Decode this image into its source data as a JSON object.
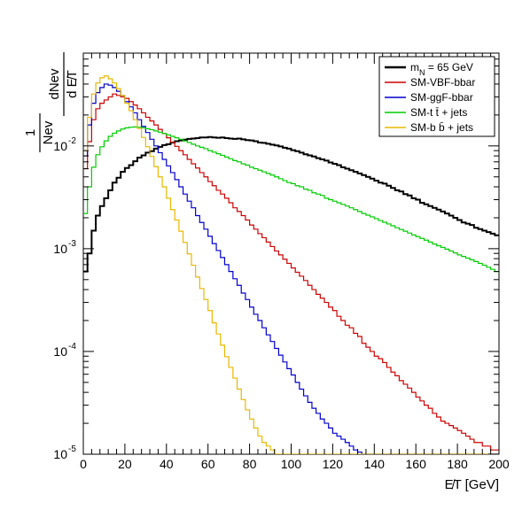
{
  "chart_data": {
    "type": "line",
    "title": "",
    "xlabel": "E̸T [GeV]",
    "ylabel_fraction_top": "1",
    "ylabel_fraction_bottom": "Nev",
    "ylabel_d": "dNev",
    "ylabel_d2": "d E̸T",
    "xlim": [
      0,
      200
    ],
    "ylim": [
      1e-05,
      0.08
    ],
    "y_scale": "log",
    "x_ticks": [
      "0",
      "20",
      "40",
      "60",
      "80",
      "100",
      "120",
      "140",
      "160",
      "180",
      "200"
    ],
    "y_ticks": [
      {
        "value": 0.01,
        "base": "10",
        "exp": "-2"
      },
      {
        "value": 0.001,
        "base": "10",
        "exp": "-3"
      },
      {
        "value": 0.0001,
        "base": "10",
        "exp": "-4"
      },
      {
        "value": 1e-05,
        "base": "10",
        "exp": "-5"
      }
    ],
    "grid": false,
    "legend_position": "top-right",
    "x_unit_step": 2,
    "series": [
      {
        "name": "mN = 65 GeV",
        "legend_main": "m",
        "legend_sub": "N",
        "legend_rest": " = 65 GeV",
        "color": "#000000",
        "values": [
          0.0006,
          0.0009,
          0.0015,
          0.0021,
          0.0026,
          0.0031,
          0.0037,
          0.0044,
          0.0049,
          0.0056,
          0.0061,
          0.0065,
          0.0071,
          0.0077,
          0.0081,
          0.0086,
          0.0089,
          0.0094,
          0.0098,
          0.0102,
          0.0104,
          0.0108,
          0.0111,
          0.0113,
          0.0115,
          0.0117,
          0.0118,
          0.0119,
          0.0121,
          0.0121,
          0.0122,
          0.0121,
          0.012,
          0.0121,
          0.0119,
          0.0118,
          0.0117,
          0.0118,
          0.0116,
          0.0114,
          0.0113,
          0.0111,
          0.0108,
          0.0107,
          0.0105,
          0.0103,
          0.0101,
          0.0099,
          0.0096,
          0.0094,
          0.0091,
          0.0089,
          0.0086,
          0.0083,
          0.0081,
          0.0079,
          0.0076,
          0.0074,
          0.0072,
          0.0069,
          0.0067,
          0.0065,
          0.0062,
          0.006,
          0.0058,
          0.0056,
          0.0054,
          0.0052,
          0.005,
          0.0048,
          0.0046,
          0.0044,
          0.0043,
          0.0041,
          0.0039,
          0.0037,
          0.0036,
          0.0034,
          0.0033,
          0.0031,
          0.003,
          0.0028,
          0.0027,
          0.0026,
          0.0025,
          0.0024,
          0.0023,
          0.0022,
          0.0021,
          0.002,
          0.0019,
          0.0018,
          0.00175,
          0.0017,
          0.0016,
          0.00155,
          0.0015,
          0.00145,
          0.0014,
          0.00135
        ]
      },
      {
        "name": "SM-VBF-bbar",
        "legend_main": "SM-VBF-bbar",
        "legend_sub": "",
        "legend_rest": "",
        "color": "#cc0000",
        "values": [
          0.006,
          0.011,
          0.018,
          0.023,
          0.026,
          0.028,
          0.03,
          0.032,
          0.031,
          0.03,
          0.029,
          0.027,
          0.025,
          0.023,
          0.021,
          0.019,
          0.0175,
          0.016,
          0.0145,
          0.0132,
          0.012,
          0.0109,
          0.0099,
          0.009,
          0.0082,
          0.0074,
          0.0067,
          0.0061,
          0.0055,
          0.005,
          0.0045,
          0.0041,
          0.0037,
          0.0034,
          0.0031,
          0.0028,
          0.0025,
          0.0023,
          0.0021,
          0.0019,
          0.0017,
          0.00155,
          0.0014,
          0.00128,
          0.00116,
          0.00105,
          0.00095,
          0.00087,
          0.00079,
          0.00072,
          0.00065,
          0.00059,
          0.00054,
          0.00049,
          0.00044,
          0.0004,
          0.00036,
          0.00033,
          0.0003,
          0.00027,
          0.00025,
          0.00022,
          0.0002,
          0.00018,
          0.00017,
          0.00015,
          0.00014,
          0.00012,
          0.00011,
          0.0001,
          9e-05,
          8.5e-05,
          7.8e-05,
          7e-05,
          6.3e-05,
          5.8e-05,
          5.2e-05,
          4.8e-05,
          4.4e-05,
          4e-05,
          3.6e-05,
          3.3e-05,
          3e-05,
          2.8e-05,
          2.5e-05,
          2.3e-05,
          2.1e-05,
          2e-05,
          1.9e-05,
          1.8e-05,
          1.7e-05,
          1.6e-05,
          1.5e-05,
          1.4e-05,
          1.3e-05,
          1.3e-05,
          1.2e-05,
          1.2e-05,
          1.1e-05,
          1.1e-05
        ]
      },
      {
        "name": "SM-ggF-bbar",
        "legend_main": "SM-ggF-bbar",
        "legend_sub": "",
        "legend_rest": "",
        "color": "#0000cc",
        "values": [
          0.008,
          0.016,
          0.026,
          0.033,
          0.037,
          0.04,
          0.039,
          0.037,
          0.034,
          0.031,
          0.027,
          0.024,
          0.021,
          0.018,
          0.0155,
          0.0135,
          0.0116,
          0.01,
          0.0086,
          0.0074,
          0.0064,
          0.0055,
          0.0047,
          0.004,
          0.0034,
          0.0029,
          0.0025,
          0.0021,
          0.0018,
          0.00155,
          0.00132,
          0.00112,
          0.00096,
          0.00082,
          0.0007,
          0.0006,
          0.00051,
          0.00044,
          0.00037,
          0.00032,
          0.00027,
          0.00023,
          0.0002,
          0.00017,
          0.000145,
          0.000125,
          0.000107,
          9.2e-05,
          7.9e-05,
          6.8e-05,
          5.9e-05,
          5e-05,
          4.3e-05,
          3.7e-05,
          3.2e-05,
          2.8e-05,
          2.5e-05,
          2.2e-05,
          2e-05,
          1.8e-05,
          1.6e-05,
          1.5e-05,
          1.4e-05,
          1.3e-05,
          1.2e-05,
          1.1e-05,
          1.05e-05,
          1e-05,
          1e-05,
          1e-05,
          1e-05,
          1e-05,
          1e-05,
          1e-05,
          1e-05,
          1e-05,
          1e-05,
          1e-05,
          1e-05,
          1e-05,
          1e-05,
          1e-05,
          1e-05,
          1e-05,
          1e-05,
          1e-05,
          1e-05,
          1e-05,
          1e-05,
          1e-05,
          1e-05,
          1e-05,
          1e-05,
          1e-05,
          1e-05,
          1e-05,
          1e-05,
          1e-05,
          1e-05,
          1e-05
        ]
      },
      {
        "name": "SM-t t̄ + jets",
        "legend_main": "SM-t t̄ + jets",
        "legend_sub": "",
        "legend_rest": "",
        "color": "#00cc00",
        "values": [
          0.0022,
          0.004,
          0.0062,
          0.0082,
          0.0098,
          0.0112,
          0.0124,
          0.0133,
          0.014,
          0.0146,
          0.015,
          0.0152,
          0.0153,
          0.0152,
          0.015,
          0.0147,
          0.0144,
          0.014,
          0.0136,
          0.0132,
          0.0128,
          0.0124,
          0.012,
          0.0116,
          0.0112,
          0.0108,
          0.0104,
          0.01,
          0.0097,
          0.0094,
          0.009,
          0.0087,
          0.0084,
          0.0081,
          0.0078,
          0.0075,
          0.0072,
          0.007,
          0.0067,
          0.0065,
          0.0062,
          0.006,
          0.0058,
          0.0056,
          0.0054,
          0.0052,
          0.005,
          0.0048,
          0.0046,
          0.0044,
          0.0043,
          0.0041,
          0.004,
          0.0038,
          0.0037,
          0.0035,
          0.0034,
          0.0033,
          0.0031,
          0.003,
          0.0029,
          0.0028,
          0.0027,
          0.0026,
          0.0025,
          0.0024,
          0.0023,
          0.0022,
          0.00212,
          0.00204,
          0.00196,
          0.00188,
          0.00181,
          0.00174,
          0.00167,
          0.0016,
          0.00154,
          0.00148,
          0.00142,
          0.00136,
          0.00131,
          0.00126,
          0.00121,
          0.00116,
          0.00111,
          0.00107,
          0.00103,
          0.00099,
          0.00095,
          0.00091,
          0.00087,
          0.00084,
          0.00081,
          0.00078,
          0.00075,
          0.00072,
          0.00069,
          0.00066,
          0.00063,
          0.0006
        ]
      },
      {
        "name": "SM-b b̄ + jets",
        "legend_main": "SM-b b̄ + jets",
        "legend_sub": "",
        "legend_rest": "",
        "color": "#e8b800",
        "values": [
          0.009,
          0.019,
          0.032,
          0.041,
          0.046,
          0.048,
          0.045,
          0.041,
          0.036,
          0.031,
          0.026,
          0.022,
          0.018,
          0.0148,
          0.0121,
          0.0098,
          0.0079,
          0.0063,
          0.005,
          0.004,
          0.0031,
          0.0024,
          0.0019,
          0.00148,
          0.00115,
          0.00089,
          0.00069,
          0.00053,
          0.00041,
          0.00032,
          0.00025,
          0.00019,
          0.000148,
          0.000115,
          8.9e-05,
          7e-05,
          5.5e-05,
          4.3e-05,
          3.4e-05,
          2.7e-05,
          2.2e-05,
          1.8e-05,
          1.5e-05,
          1.3e-05,
          1.2e-05,
          1.1e-05,
          1e-05,
          1e-05,
          1e-05,
          1e-05,
          1e-05,
          1e-05,
          1e-05,
          1e-05,
          1e-05,
          1e-05,
          1e-05,
          1e-05,
          1e-05,
          1e-05,
          1e-05,
          1e-05,
          1e-05,
          1e-05,
          1e-05,
          1e-05,
          1e-05,
          1e-05,
          1e-05,
          1e-05,
          1e-05,
          1e-05,
          1e-05,
          1e-05,
          1e-05,
          1e-05,
          1e-05,
          1e-05,
          1e-05,
          1e-05,
          1e-05,
          1e-05,
          1e-05,
          1e-05,
          1e-05,
          1e-05,
          1e-05,
          1e-05,
          1e-05,
          1e-05,
          1e-05,
          1e-05,
          1e-05,
          1e-05,
          1e-05,
          1e-05,
          1e-05,
          1e-05,
          1e-05,
          1e-05
        ]
      }
    ]
  }
}
